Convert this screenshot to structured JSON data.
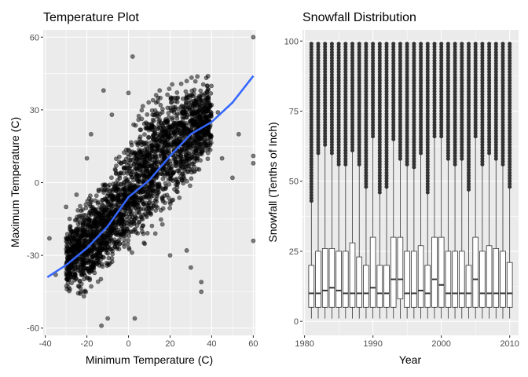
{
  "chart_data": [
    {
      "type": "scatter",
      "title": "Temperature Plot",
      "xlabel": "Minimum Temperature (C)",
      "ylabel": "Maximum Temperature (C)",
      "xlim": [
        -41,
        61
      ],
      "ylim": [
        -63,
        63
      ],
      "xticks": [
        -40,
        -20,
        0,
        20,
        40,
        60
      ],
      "yticks": [
        -60,
        -30,
        0,
        30,
        60
      ],
      "grid": true,
      "point_color": "#000000",
      "point_alpha": 0.5,
      "smooth_color": "#3366FF",
      "cloud": {
        "description_free": true,
        "band": [
          {
            "x": -30,
            "ymin": -42,
            "ymax": -22
          },
          {
            "x": -20,
            "ymin": -40,
            "ymax": -12
          },
          {
            "x": -10,
            "ymin": -30,
            "ymax": -5
          },
          {
            "x": 0,
            "ymin": -22,
            "ymax": 10
          },
          {
            "x": 10,
            "ymin": -12,
            "ymax": 25
          },
          {
            "x": 20,
            "ymin": -3,
            "ymax": 32
          },
          {
            "x": 30,
            "ymin": 8,
            "ymax": 36
          },
          {
            "x": 40,
            "ymin": 15,
            "ymax": 38
          }
        ]
      },
      "outliers": [
        {
          "x": 2,
          "y": 52
        },
        {
          "x": 60,
          "y": 60
        },
        {
          "x": 60,
          "y": 11
        },
        {
          "x": 60,
          "y": 8
        },
        {
          "x": 60,
          "y": -24
        },
        {
          "x": 53,
          "y": 20
        },
        {
          "x": 50,
          "y": 2
        },
        {
          "x": 43,
          "y": 29
        },
        {
          "x": -38,
          "y": -23
        },
        {
          "x": -30,
          "y": -10
        },
        {
          "x": -25,
          "y": -5
        },
        {
          "x": -18,
          "y": 20
        },
        {
          "x": -10,
          "y": -56
        },
        {
          "x": -13,
          "y": -59
        },
        {
          "x": 3,
          "y": -56
        },
        {
          "x": 35,
          "y": -45
        },
        {
          "x": 35,
          "y": -41
        },
        {
          "x": -12,
          "y": 38
        },
        {
          "x": -8,
          "y": 28
        },
        {
          "x": 0,
          "y": 37
        },
        {
          "x": 28,
          "y": -28
        },
        {
          "x": 30,
          "y": -35
        },
        {
          "x": -35,
          "y": -38
        },
        {
          "x": 15,
          "y": 38
        },
        {
          "x": -28,
          "y": -18
        },
        {
          "x": 45,
          "y": 10
        },
        {
          "x": -20,
          "y": 10
        },
        {
          "x": 20,
          "y": -30
        }
      ],
      "series": [
        {
          "x": [
            -39,
            -30,
            -20,
            -10,
            0,
            10,
            20,
            30,
            40,
            50,
            60
          ],
          "y": [
            -39,
            -34,
            -27,
            -18,
            -6,
            1,
            11,
            20,
            25,
            33,
            44
          ]
        }
      ]
    },
    {
      "type": "box",
      "title": "Snowfall Distribution",
      "xlabel": "Year",
      "ylabel": "Snowfall (Tenths of Inch)",
      "xlim": [
        1979.7,
        2011.3
      ],
      "ylim": [
        -5,
        104
      ],
      "xticks": [
        1980,
        1990,
        2000,
        2010
      ],
      "yticks": [
        0,
        25,
        50,
        75,
        100
      ],
      "grid": true,
      "boxes": [
        {
          "year": 1981,
          "q1": 5,
          "median": 10,
          "q3": 20,
          "upper_whisker": 43,
          "outliers_from": 43
        },
        {
          "year": 1982,
          "q1": 5,
          "median": 10,
          "q3": 25,
          "upper_whisker": 60,
          "outliers_from": 60
        },
        {
          "year": 1983,
          "q1": 5,
          "median": 11,
          "q3": 26,
          "upper_whisker": 63,
          "outliers_from": 63
        },
        {
          "year": 1984,
          "q1": 5,
          "median": 12,
          "q3": 26,
          "upper_whisker": 60,
          "outliers_from": 60
        },
        {
          "year": 1985,
          "q1": 5,
          "median": 11,
          "q3": 25,
          "upper_whisker": 56,
          "outliers_from": 56
        },
        {
          "year": 1986,
          "q1": 5,
          "median": 10,
          "q3": 25,
          "upper_whisker": 56,
          "outliers_from": 56
        },
        {
          "year": 1987,
          "q1": 5,
          "median": 10,
          "q3": 28,
          "upper_whisker": 61,
          "outliers_from": 61
        },
        {
          "year": 1988,
          "q1": 5,
          "median": 10,
          "q3": 23,
          "upper_whisker": 56,
          "outliers_from": 56
        },
        {
          "year": 1989,
          "q1": 5,
          "median": 10,
          "q3": 20,
          "upper_whisker": 48,
          "outliers_from": 48
        },
        {
          "year": 1990,
          "q1": 5,
          "median": 12,
          "q3": 30,
          "upper_whisker": 66,
          "outliers_from": 66
        },
        {
          "year": 1991,
          "q1": 5,
          "median": 10,
          "q3": 20,
          "upper_whisker": 46,
          "outliers_from": 46
        },
        {
          "year": 1992,
          "q1": 5,
          "median": 10,
          "q3": 20,
          "upper_whisker": 48,
          "outliers_from": 48
        },
        {
          "year": 1993,
          "q1": 5,
          "median": 15,
          "q3": 30,
          "upper_whisker": 65,
          "outliers_from": 65
        },
        {
          "year": 1994,
          "q1": 8,
          "median": 15,
          "q3": 30,
          "upper_whisker": 58,
          "outliers_from": 58
        },
        {
          "year": 1995,
          "q1": 5,
          "median": 10,
          "q3": 25,
          "upper_whisker": 56,
          "outliers_from": 56
        },
        {
          "year": 1996,
          "q1": 5,
          "median": 10,
          "q3": 25,
          "upper_whisker": 55,
          "outliers_from": 55
        },
        {
          "year": 1997,
          "q1": 5,
          "median": 11,
          "q3": 27,
          "upper_whisker": 60,
          "outliers_from": 60
        },
        {
          "year": 1998,
          "q1": 5,
          "median": 10,
          "q3": 20,
          "upper_whisker": 46,
          "outliers_from": 46
        },
        {
          "year": 1999,
          "q1": 5,
          "median": 15,
          "q3": 30,
          "upper_whisker": 66,
          "outliers_from": 66
        },
        {
          "year": 2000,
          "q1": 5,
          "median": 13,
          "q3": 30,
          "upper_whisker": 66,
          "outliers_from": 66
        },
        {
          "year": 2001,
          "q1": 5,
          "median": 10,
          "q3": 25,
          "upper_whisker": 58,
          "outliers_from": 58
        },
        {
          "year": 2002,
          "q1": 5,
          "median": 10,
          "q3": 25,
          "upper_whisker": 56,
          "outliers_from": 56
        },
        {
          "year": 2003,
          "q1": 5,
          "median": 10,
          "q3": 25,
          "upper_whisker": 58,
          "outliers_from": 58
        },
        {
          "year": 2004,
          "q1": 5,
          "median": 10,
          "q3": 20,
          "upper_whisker": 47,
          "outliers_from": 47
        },
        {
          "year": 2005,
          "q1": 5,
          "median": 15,
          "q3": 30,
          "upper_whisker": 66,
          "outliers_from": 66
        },
        {
          "year": 2006,
          "q1": 5,
          "median": 10,
          "q3": 25,
          "upper_whisker": 56,
          "outliers_from": 56
        },
        {
          "year": 2007,
          "q1": 5,
          "median": 10,
          "q3": 27,
          "upper_whisker": 60,
          "outliers_from": 60
        },
        {
          "year": 2008,
          "q1": 5,
          "median": 10,
          "q3": 26,
          "upper_whisker": 58,
          "outliers_from": 58
        },
        {
          "year": 2009,
          "q1": 5,
          "median": 10,
          "q3": 25,
          "upper_whisker": 56,
          "outliers_from": 56
        },
        {
          "year": 2010,
          "q1": 5,
          "median": 10,
          "q3": 21,
          "upper_whisker": 48,
          "outliers_from": 48
        }
      ],
      "lower_whisker": 1,
      "max_outlier": 99
    }
  ]
}
